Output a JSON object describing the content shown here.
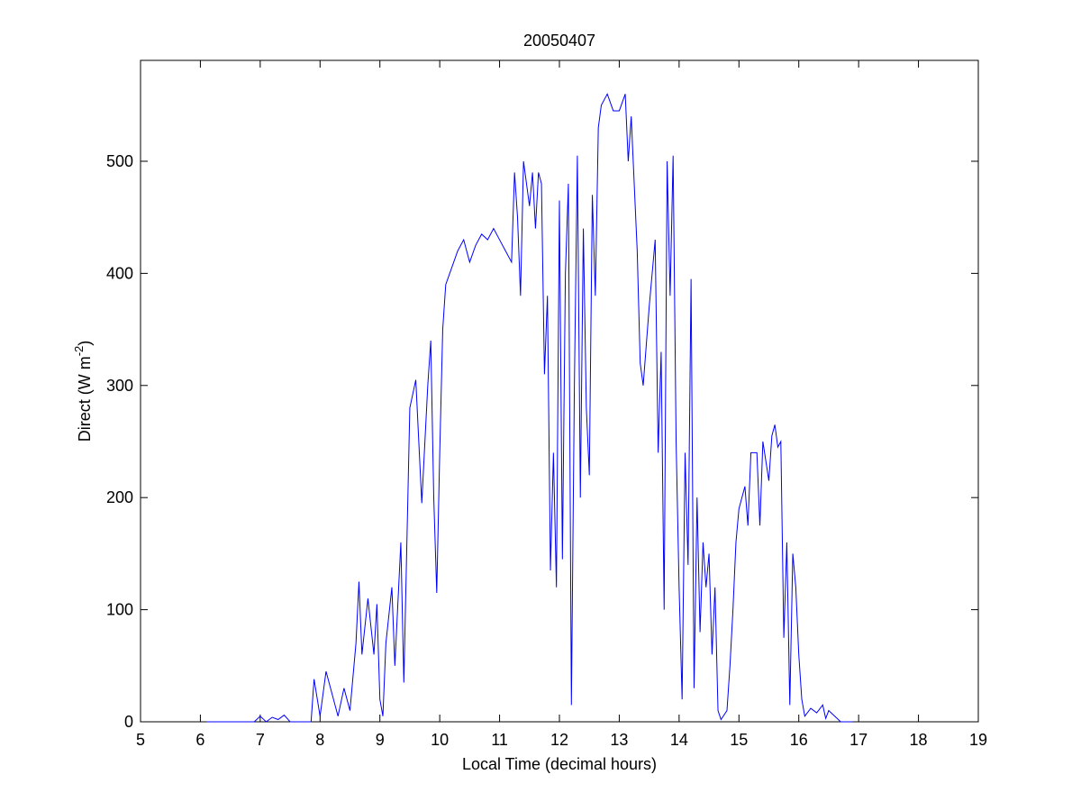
{
  "chart_data": {
    "type": "line",
    "title": "20050407",
    "x_label": "Local Time (decimal hours)",
    "y_label": [
      "Direct (W m",
      "-2",
      ")"
    ],
    "x": [
      6.1,
      6.5,
      6.9,
      7.0,
      7.1,
      7.2,
      7.3,
      7.4,
      7.5,
      7.85,
      7.9,
      8.0,
      8.1,
      8.2,
      8.3,
      8.4,
      8.5,
      8.6,
      8.65,
      8.7,
      8.8,
      8.9,
      8.95,
      9.0,
      9.05,
      9.1,
      9.2,
      9.25,
      9.35,
      9.4,
      9.5,
      9.6,
      9.7,
      9.8,
      9.85,
      9.9,
      9.95,
      10.0,
      10.05,
      10.1,
      10.2,
      10.3,
      10.4,
      10.5,
      10.6,
      10.7,
      10.8,
      10.9,
      11.0,
      11.1,
      11.2,
      11.25,
      11.3,
      11.35,
      11.4,
      11.5,
      11.55,
      11.6,
      11.65,
      11.7,
      11.75,
      11.8,
      11.85,
      11.9,
      11.95,
      12.0,
      12.05,
      12.1,
      12.15,
      12.2,
      12.25,
      12.3,
      12.35,
      12.4,
      12.45,
      12.5,
      12.55,
      12.6,
      12.65,
      12.7,
      12.8,
      12.9,
      13.0,
      13.1,
      13.15,
      13.2,
      13.3,
      13.35,
      13.4,
      13.5,
      13.6,
      13.65,
      13.7,
      13.75,
      13.8,
      13.85,
      13.9,
      13.95,
      14.0,
      14.05,
      14.1,
      14.15,
      14.2,
      14.25,
      14.3,
      14.35,
      14.4,
      14.45,
      14.5,
      14.55,
      14.6,
      14.65,
      14.7,
      14.8,
      14.85,
      14.9,
      14.95,
      15.0,
      15.1,
      15.15,
      15.2,
      15.3,
      15.35,
      15.4,
      15.5,
      15.55,
      15.6,
      15.65,
      15.7,
      15.75,
      15.8,
      15.85,
      15.9,
      15.95,
      16.0,
      16.05,
      16.1,
      16.2,
      16.3,
      16.4,
      16.45,
      16.5,
      16.6,
      16.7,
      16.9
    ],
    "series": [
      {
        "color": "#0000ff",
        "values": [
          0,
          0,
          0,
          5,
          0,
          4,
          2,
          6,
          0,
          0,
          38,
          5,
          45,
          25,
          5,
          30,
          10,
          70,
          125,
          60,
          110,
          60,
          105,
          20,
          5,
          70,
          120,
          50,
          160,
          35,
          280,
          305,
          195,
          300,
          340,
          200,
          115,
          240,
          350,
          390,
          405,
          420,
          430,
          410,
          425,
          435,
          430,
          440,
          430,
          420,
          410,
          490,
          450,
          380,
          500,
          460,
          490,
          440,
          490,
          480,
          310,
          380,
          135,
          240,
          120,
          465,
          145,
          400,
          480,
          15,
          300,
          505,
          200,
          440,
          280,
          220,
          470,
          380,
          530,
          550,
          560,
          545,
          545,
          560,
          500,
          540,
          420,
          320,
          300,
          370,
          430,
          240,
          330,
          100,
          500,
          380,
          505,
          250,
          120,
          20,
          240,
          140,
          395,
          30,
          200,
          80,
          160,
          120,
          150,
          60,
          120,
          10,
          2,
          10,
          50,
          100,
          160,
          190,
          210,
          175,
          240,
          240,
          175,
          250,
          215,
          255,
          265,
          245,
          250,
          75,
          160,
          15,
          150,
          120,
          60,
          20,
          5,
          12,
          8,
          15,
          3,
          10,
          5,
          0,
          0
        ]
      }
    ],
    "xlim": [
      5,
      19
    ],
    "xticks": [
      5,
      6,
      7,
      8,
      9,
      10,
      11,
      12,
      13,
      14,
      15,
      16,
      17,
      18,
      19
    ],
    "ylim": [
      0,
      590
    ],
    "yticks": [
      0,
      100,
      200,
      300,
      400,
      500
    ]
  }
}
